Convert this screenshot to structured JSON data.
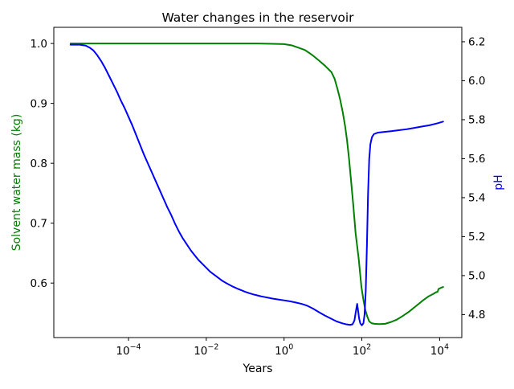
{
  "chart_data": {
    "type": "line",
    "title": "Water changes in the reservoir",
    "xlabel": "Years",
    "x_scale": "log",
    "xlim_log10": [
      -5.92,
      4.57
    ],
    "grid": false,
    "legend": "none",
    "x_ticks": [
      {
        "log10": -4,
        "base": "10",
        "exp": "−4"
      },
      {
        "log10": -2,
        "base": "10",
        "exp": "−2"
      },
      {
        "log10": 0,
        "base": "10",
        "exp": "0"
      },
      {
        "log10": 2,
        "base": "10",
        "exp": "2"
      },
      {
        "log10": 4,
        "base": "10",
        "exp": "4"
      }
    ],
    "left_axis": {
      "label": "Solvent water mass (kg)",
      "color": "#008000",
      "lim": [
        0.509,
        1.027
      ],
      "ticks": [
        {
          "v": 1.0,
          "label": "1.0"
        },
        {
          "v": 0.9,
          "label": "0.9"
        },
        {
          "v": 0.8,
          "label": "0.8"
        },
        {
          "v": 0.7,
          "label": "0.7"
        },
        {
          "v": 0.6,
          "label": "0.6"
        }
      ]
    },
    "right_axis": {
      "label": "pH",
      "color": "#0000ff",
      "lim": [
        4.682,
        6.274
      ],
      "ticks": [
        {
          "v": 6.2,
          "label": "6.2"
        },
        {
          "v": 6.0,
          "label": "6.0"
        },
        {
          "v": 5.8,
          "label": "5.8"
        },
        {
          "v": 5.6,
          "label": "5.6"
        },
        {
          "v": 5.4,
          "label": "5.4"
        },
        {
          "v": 5.2,
          "label": "5.2"
        },
        {
          "v": 5.0,
          "label": "5.0"
        },
        {
          "v": 4.8,
          "label": "4.8"
        }
      ]
    },
    "series": [
      {
        "name": "Solvent water mass (kg)",
        "yaxis": "left",
        "color": "#008000",
        "points_x_log10_y": [
          [
            -5.49,
            1.0
          ],
          [
            -4.5,
            1.0
          ],
          [
            -3.5,
            1.0
          ],
          [
            -2.5,
            1.0
          ],
          [
            -1.5,
            1.0
          ],
          [
            -0.7,
            1.0
          ],
          [
            -0.3,
            0.9995
          ],
          [
            0.0,
            0.999
          ],
          [
            0.19,
            0.997
          ],
          [
            0.37,
            0.993
          ],
          [
            0.54,
            0.989
          ],
          [
            0.72,
            0.981
          ],
          [
            0.89,
            0.972
          ],
          [
            1.05,
            0.963
          ],
          [
            1.22,
            0.952
          ],
          [
            1.3,
            0.941
          ],
          [
            1.37,
            0.925
          ],
          [
            1.44,
            0.907
          ],
          [
            1.51,
            0.885
          ],
          [
            1.57,
            0.862
          ],
          [
            1.62,
            0.838
          ],
          [
            1.67,
            0.808
          ],
          [
            1.72,
            0.773
          ],
          [
            1.78,
            0.73
          ],
          [
            1.84,
            0.683
          ],
          [
            1.92,
            0.64
          ],
          [
            1.99,
            0.593
          ],
          [
            2.04,
            0.572
          ],
          [
            2.09,
            0.555
          ],
          [
            2.14,
            0.544
          ],
          [
            2.19,
            0.536
          ],
          [
            2.25,
            0.533
          ],
          [
            2.32,
            0.532
          ],
          [
            2.45,
            0.5315
          ],
          [
            2.6,
            0.532
          ],
          [
            2.75,
            0.535
          ],
          [
            2.9,
            0.539
          ],
          [
            3.05,
            0.545
          ],
          [
            3.22,
            0.5525
          ],
          [
            3.4,
            0.562
          ],
          [
            3.58,
            0.5715
          ],
          [
            3.72,
            0.578
          ],
          [
            3.84,
            0.582
          ],
          [
            3.9,
            0.5845
          ],
          [
            3.95,
            0.5855
          ],
          [
            3.97,
            0.59
          ],
          [
            4.03,
            0.592
          ],
          [
            4.09,
            0.5935
          ]
        ]
      },
      {
        "name": "pH",
        "yaxis": "right",
        "color": "#0000ff",
        "points_x_log10_y": [
          [
            -5.49,
            6.185
          ],
          [
            -5.25,
            6.185
          ],
          [
            -5.1,
            6.18
          ],
          [
            -5.0,
            6.17
          ],
          [
            -4.9,
            6.155
          ],
          [
            -4.8,
            6.13
          ],
          [
            -4.7,
            6.1
          ],
          [
            -4.6,
            6.065
          ],
          [
            -4.5,
            6.025
          ],
          [
            -4.4,
            5.985
          ],
          [
            -4.3,
            5.945
          ],
          [
            -4.2,
            5.9
          ],
          [
            -4.1,
            5.86
          ],
          [
            -4.0,
            5.815
          ],
          [
            -3.9,
            5.77
          ],
          [
            -3.8,
            5.72
          ],
          [
            -3.7,
            5.67
          ],
          [
            -3.6,
            5.62
          ],
          [
            -3.5,
            5.575
          ],
          [
            -3.4,
            5.53
          ],
          [
            -3.3,
            5.485
          ],
          [
            -3.2,
            5.44
          ],
          [
            -3.1,
            5.395
          ],
          [
            -3.0,
            5.35
          ],
          [
            -2.9,
            5.31
          ],
          [
            -2.8,
            5.265
          ],
          [
            -2.7,
            5.225
          ],
          [
            -2.6,
            5.19
          ],
          [
            -2.5,
            5.16
          ],
          [
            -2.4,
            5.13
          ],
          [
            -2.3,
            5.105
          ],
          [
            -2.2,
            5.08
          ],
          [
            -2.1,
            5.06
          ],
          [
            -2.0,
            5.04
          ],
          [
            -1.9,
            5.02
          ],
          [
            -1.8,
            5.005
          ],
          [
            -1.7,
            4.99
          ],
          [
            -1.6,
            4.975
          ],
          [
            -1.5,
            4.963
          ],
          [
            -1.4,
            4.952
          ],
          [
            -1.3,
            4.942
          ],
          [
            -1.2,
            4.933
          ],
          [
            -1.1,
            4.925
          ],
          [
            -1.0,
            4.917
          ],
          [
            -0.9,
            4.91
          ],
          [
            -0.8,
            4.904
          ],
          [
            -0.7,
            4.899
          ],
          [
            -0.6,
            4.894
          ],
          [
            -0.5,
            4.89
          ],
          [
            -0.4,
            4.886
          ],
          [
            -0.3,
            4.882
          ],
          [
            -0.2,
            4.879
          ],
          [
            -0.1,
            4.876
          ],
          [
            0.0,
            4.873
          ],
          [
            0.15,
            4.868
          ],
          [
            0.3,
            4.862
          ],
          [
            0.45,
            4.855
          ],
          [
            0.6,
            4.845
          ],
          [
            0.75,
            4.83
          ],
          [
            0.9,
            4.812
          ],
          [
            1.05,
            4.795
          ],
          [
            1.2,
            4.78
          ],
          [
            1.35,
            4.765
          ],
          [
            1.5,
            4.755
          ],
          [
            1.6,
            4.75
          ],
          [
            1.7,
            4.747
          ],
          [
            1.76,
            4.75
          ],
          [
            1.81,
            4.77
          ],
          [
            1.85,
            4.82
          ],
          [
            1.88,
            4.855
          ],
          [
            1.9,
            4.825
          ],
          [
            1.93,
            4.78
          ],
          [
            1.96,
            4.755
          ],
          [
            2.0,
            4.745
          ],
          [
            2.04,
            4.755
          ],
          [
            2.07,
            4.8
          ],
          [
            2.1,
            4.92
          ],
          [
            2.13,
            5.15
          ],
          [
            2.16,
            5.42
          ],
          [
            2.19,
            5.6
          ],
          [
            2.22,
            5.675
          ],
          [
            2.26,
            5.71
          ],
          [
            2.31,
            5.726
          ],
          [
            2.4,
            5.733
          ],
          [
            2.55,
            5.737
          ],
          [
            2.75,
            5.741
          ],
          [
            2.95,
            5.746
          ],
          [
            3.15,
            5.751
          ],
          [
            3.35,
            5.758
          ],
          [
            3.55,
            5.765
          ],
          [
            3.75,
            5.772
          ],
          [
            3.95,
            5.782
          ],
          [
            4.09,
            5.79
          ]
        ]
      }
    ]
  }
}
